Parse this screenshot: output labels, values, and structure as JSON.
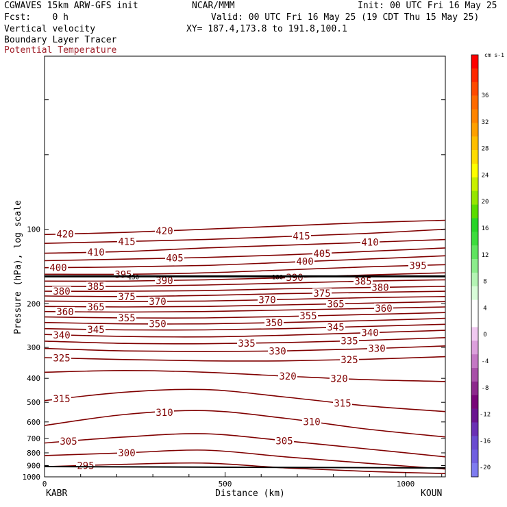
{
  "header": {
    "model": "CGWAVES 15km ARW-GFS init",
    "center": "NCAR/MMM",
    "init": "Init: 00 UTC Fri 16 May 25",
    "fcst": "Fcst:    0 h",
    "valid": "Valid: 00 UTC Fri 16 May 25 (19 CDT Thu 15 May 25)",
    "field1": "Vertical velocity",
    "xy": "XY= 187.4,173.8 to 191.8,100.1",
    "field2": "Boundary Layer Tracer",
    "field3": "Potential Temperature"
  },
  "colors": {
    "theta": "#800000",
    "field3_label": "#a0202a",
    "tracer": "#000000"
  },
  "chart_data": {
    "type": "contour",
    "xlabel": "Distance (km)",
    "ylabel": "Pressure (hPa), log scale",
    "x_ticks": [
      0,
      500,
      1000
    ],
    "xlim": [
      0,
      1110
    ],
    "y_scale": "log",
    "ylim": [
      1000,
      20
    ],
    "y_ticks": [
      100,
      200,
      300,
      400,
      500,
      600,
      700,
      800,
      900,
      1000
    ],
    "start_station": "KABR",
    "end_station": "KOUN",
    "tracer_label": "150",
    "tracer_label2": "180",
    "colorbar": {
      "units": "cm s-1",
      "labels": [
        36,
        32,
        28,
        24,
        20,
        16,
        12,
        8,
        4,
        0,
        -4,
        -8,
        -12,
        -16,
        -20
      ],
      "colors": [
        "#ff0000",
        "#ff2800",
        "#ff4a00",
        "#ff6a00",
        "#ff8400",
        "#ffa000",
        "#ffbe00",
        "#ffdc00",
        "#ffff00",
        "#c8f000",
        "#96e600",
        "#5adc00",
        "#28d428",
        "#3cdc3c",
        "#60e460",
        "#8cec8c",
        "#b4f4b4",
        "#d8fcd8",
        "#ffffff",
        "#ffffff",
        "#f0c8f0",
        "#dca0dc",
        "#c478c4",
        "#a850a8",
        "#8c288c",
        "#780478",
        "#6a1490",
        "#6a30b4",
        "#6a4cd0",
        "#7060e0",
        "#7e7cf0"
      ]
    },
    "theta_lines": [
      {
        "label": "420",
        "p": [
          105,
          103,
          100,
          97,
          94,
          92
        ]
      },
      {
        "label": "415",
        "p": [
          114,
          112,
          110,
          107,
          104,
          100
        ]
      },
      {
        "label": "410",
        "p": [
          125,
          123,
          119,
          116,
          113,
          110
        ]
      },
      {
        "label": "405",
        "p": [
          134,
          132,
          130,
          127,
          123,
          119
        ]
      },
      {
        "label": "400",
        "p": [
          143,
          142,
          140,
          136,
          132,
          128
        ]
      },
      {
        "label": "395",
        "p": [
          152,
          152,
          150,
          146,
          142,
          139
        ]
      },
      {
        "label": "390",
        "p": [
          162,
          162,
          160,
          157,
          153,
          150
        ]
      },
      {
        "label": "385",
        "p": [
          170,
          170,
          168,
          165,
          162,
          160
        ]
      },
      {
        "label": "380",
        "p": [
          178,
          178,
          177,
          174,
          172,
          170
        ]
      },
      {
        "label": "375",
        "p": [
          186,
          187,
          185,
          182,
          180,
          178
        ]
      },
      {
        "label": "370",
        "p": [
          195,
          196,
          195,
          192,
          189,
          187
        ]
      },
      {
        "label": "365",
        "p": [
          205,
          206,
          205,
          202,
          199,
          196
        ]
      },
      {
        "label": "360",
        "p": [
          215,
          216,
          215,
          212,
          209,
          206
        ]
      },
      {
        "label": "355",
        "p": [
          226,
          228,
          228,
          225,
          221,
          217
        ]
      },
      {
        "label": "350",
        "p": [
          238,
          241,
          241,
          238,
          234,
          229
        ]
      },
      {
        "label": "345",
        "p": [
          252,
          255,
          255,
          252,
          247,
          242
        ]
      },
      {
        "label": "340",
        "p": [
          266,
          271,
          272,
          268,
          262,
          256
        ]
      },
      {
        "label": "335",
        "p": [
          283,
          289,
          290,
          287,
          281,
          274
        ]
      },
      {
        "label": "330",
        "p": [
          303,
          310,
          312,
          310,
          304,
          296
        ]
      },
      {
        "label": "325",
        "p": [
          330,
          336,
          340,
          340,
          335,
          327
        ]
      },
      {
        "label": "320",
        "p": [
          378,
          372,
          378,
          392,
          405,
          412
        ]
      },
      {
        "label": "315",
        "p": [
          492,
          455,
          444,
          476,
          516,
          545
        ]
      },
      {
        "label": "310",
        "p": [
          620,
          560,
          540,
          580,
          640,
          690
        ]
      },
      {
        "label": "305",
        "p": [
          730,
          690,
          670,
          715,
          770,
          830
        ]
      },
      {
        "label": "300",
        "p": [
          820,
          800,
          780,
          830,
          880,
          930
        ]
      },
      {
        "label": "295",
        "p": [
          910,
          890,
          880,
          920,
          950,
          970
        ]
      }
    ]
  }
}
